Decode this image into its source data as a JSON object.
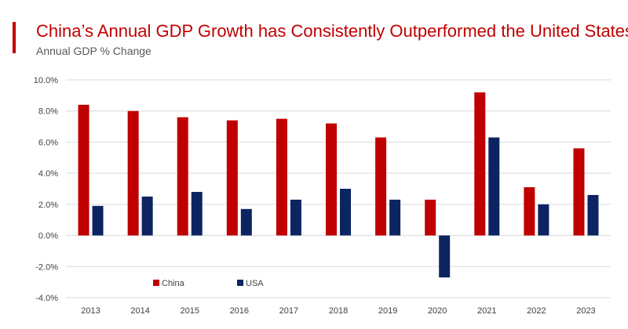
{
  "header": {
    "title": "China’s Annual GDP Growth has Consistently Outperformed the United States",
    "subtitle": "Annual GDP % Change"
  },
  "chart_data": {
    "type": "bar",
    "title": "China’s Annual GDP Growth has Consistently Outperformed the United States",
    "subtitle": "Annual GDP % Change",
    "xlabel": "",
    "ylabel": "",
    "categories": [
      "2013",
      "2014",
      "2015",
      "2016",
      "2017",
      "2018",
      "2019",
      "2020",
      "2021",
      "2022",
      "2023"
    ],
    "series": [
      {
        "name": "China",
        "color": "#c00000",
        "values": [
          8.4,
          8.0,
          7.6,
          7.4,
          7.5,
          7.2,
          6.3,
          2.3,
          9.2,
          3.1,
          5.6
        ]
      },
      {
        "name": "USA",
        "color": "#0c2461",
        "values": [
          1.9,
          2.5,
          2.8,
          1.7,
          2.3,
          3.0,
          2.3,
          -2.7,
          6.3,
          2.0,
          2.6
        ]
      }
    ],
    "ylim": [
      -4,
      10
    ],
    "yticks": [
      -4,
      -2,
      0,
      2,
      4,
      6,
      8,
      10
    ],
    "ytick_labels": [
      "-4.0%",
      "-2.0%",
      "0.0%",
      "2.0%",
      "4.0%",
      "6.0%",
      "8.0%",
      "10.0%"
    ],
    "grid": true,
    "legend_position": "bottom-left-inside"
  }
}
